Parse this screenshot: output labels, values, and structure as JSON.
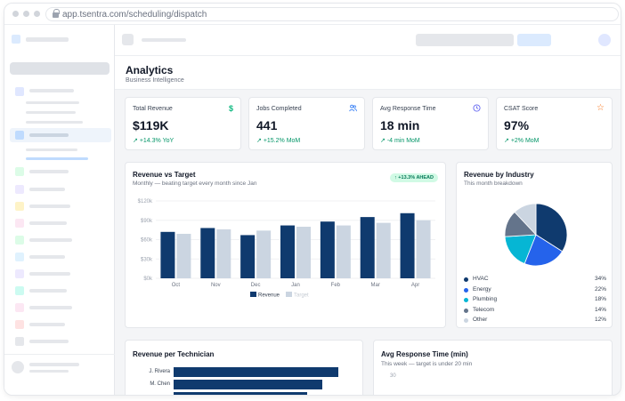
{
  "browser": {
    "url": "app.tsentra.com/scheduling/dispatch"
  },
  "page": {
    "title": "Analytics",
    "subtitle": "Business Intelligence"
  },
  "kpis": [
    {
      "label": "Total Revenue",
      "value": "$119K",
      "delta": "+14.3% YoY",
      "icon": "dollar-icon",
      "glyph": "$",
      "color": "#10b981"
    },
    {
      "label": "Jobs Completed",
      "value": "441",
      "delta": "+15.2% MoM",
      "icon": "users-icon",
      "glyph": "👥",
      "color": "#3b82f6"
    },
    {
      "label": "Avg Response Time",
      "value": "18 min",
      "delta": "-4 min MoM",
      "icon": "clock-icon",
      "glyph": "◷",
      "color": "#6366f1"
    },
    {
      "label": "CSAT Score",
      "value": "97%",
      "delta": "+2% MoM",
      "icon": "star-icon",
      "glyph": "☆",
      "color": "#f97316"
    }
  ],
  "revenue_chart": {
    "title": "Revenue vs Target",
    "subtitle": "Monthly — beating target every month since Jan",
    "badge": "↑ +13.3% AHEAD"
  },
  "industry_chart": {
    "title": "Revenue by Industry",
    "subtitle": "This month breakdown"
  },
  "technician_chart": {
    "title": "Revenue per Technician"
  },
  "response_chart": {
    "title": "Avg Response Time (min)",
    "subtitle": "This week — target is under 20 min",
    "ytick": "30"
  },
  "chart_data": [
    {
      "type": "bar",
      "title": "Revenue vs Target",
      "categories": [
        "Oct",
        "Nov",
        "Dec",
        "Jan",
        "Feb",
        "Mar",
        "Apr"
      ],
      "series": [
        {
          "name": "Revenue",
          "values": [
            72,
            78,
            67,
            82,
            88,
            95,
            101
          ],
          "color": "#0f3a6e"
        },
        {
          "name": "Target",
          "values": [
            69,
            76,
            74,
            80,
            82,
            86,
            90
          ],
          "color": "#cbd5e1"
        }
      ],
      "yticks": [
        "$0k",
        "$30k",
        "$60k",
        "$90k",
        "$120k"
      ],
      "ylim": [
        0,
        120
      ],
      "legend": "bottom"
    },
    {
      "type": "pie",
      "title": "Revenue by Industry",
      "labels": [
        "HVAC",
        "Energy",
        "Plumbing",
        "Telecom",
        "Other"
      ],
      "values": [
        34,
        22,
        18,
        14,
        12
      ],
      "display": [
        "34%",
        "22%",
        "18%",
        "14%",
        "12%"
      ],
      "colors": [
        "#0f3a6e",
        "#2563eb",
        "#06b6d4",
        "#64748b",
        "#cbd5e1"
      ],
      "legend": "bottom"
    },
    {
      "type": "bar",
      "orientation": "horizontal",
      "title": "Revenue per Technician",
      "categories": [
        "J. Rivera",
        "M. Chen"
      ],
      "values": [
        100,
        90
      ]
    }
  ]
}
